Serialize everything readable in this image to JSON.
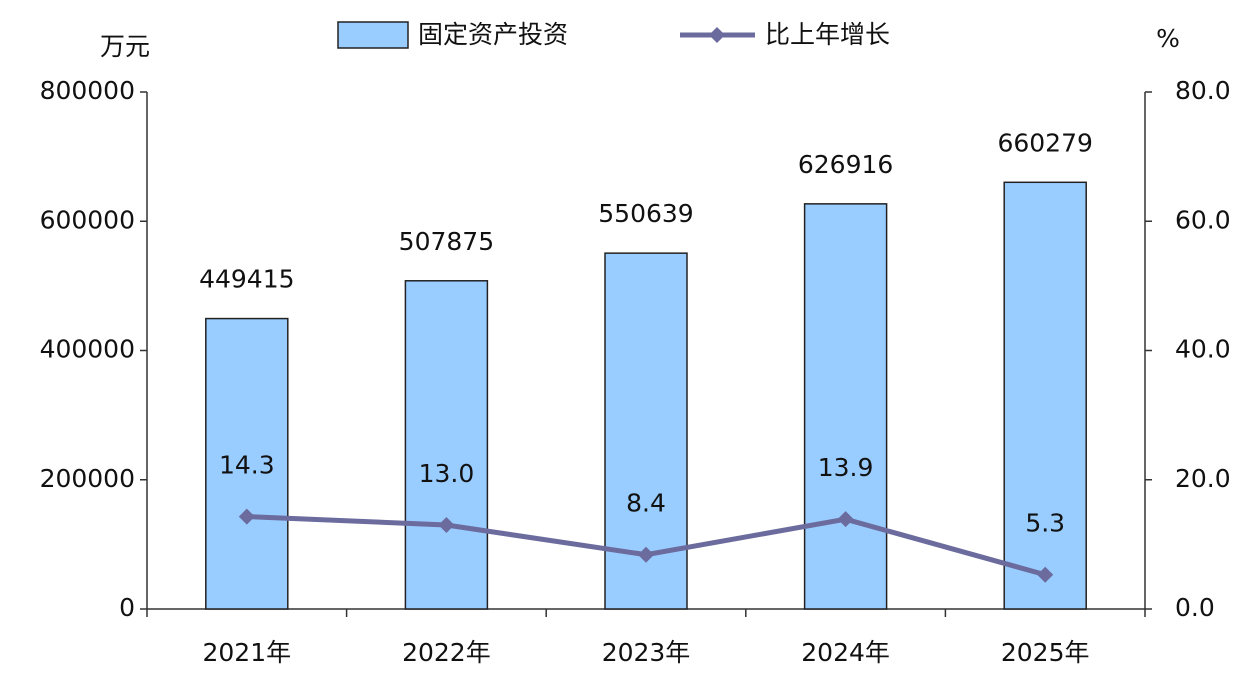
{
  "chart_data": {
    "type": "bar",
    "y_label": "万元",
    "y2_label": "%",
    "categories": [
      "2021年",
      "2022年",
      "2023年",
      "2024年",
      "2025年"
    ],
    "series": [
      {
        "name": "固定资产投资",
        "type": "bar",
        "color": "#99ccff",
        "values": [
          449415,
          507875,
          550639,
          626916,
          660279
        ]
      },
      {
        "name": "比上年增长",
        "type": "line",
        "axis": "y2",
        "color": "#6b6b9e",
        "values": [
          14.3,
          13.0,
          8.4,
          13.9,
          5.3
        ],
        "value_labels": [
          "14.3",
          "13.0",
          "8.4",
          "13.9",
          "5.3"
        ]
      }
    ],
    "ylim": [
      0,
      800000
    ],
    "yticks": [
      0,
      200000,
      400000,
      600000,
      800000
    ],
    "y2lim": [
      0,
      80
    ],
    "y2ticks": [
      {
        "value": 0,
        "label": "0.0"
      },
      {
        "value": 20,
        "label": "20.0"
      },
      {
        "value": 40,
        "label": "40.0"
      },
      {
        "value": 60,
        "label": "60.0"
      },
      {
        "value": 80,
        "label": "80.0"
      }
    ],
    "grid": false
  }
}
